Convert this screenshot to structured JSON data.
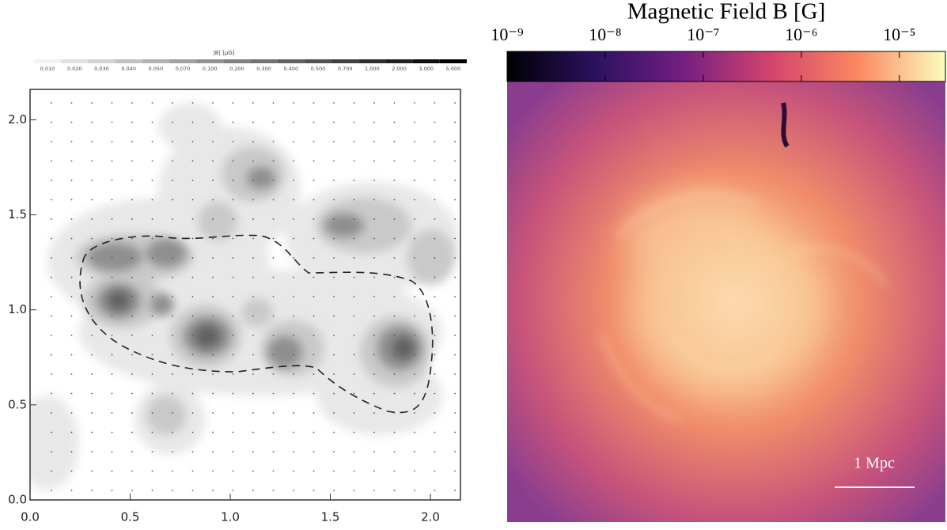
{
  "left_panel": {
    "colorbar": {
      "title": "|B| [μG]",
      "ticks": [
        {
          "value": 0.01,
          "label": "0.010"
        },
        {
          "value": 0.02,
          "label": "0.020"
        },
        {
          "value": 0.03,
          "label": "0.030"
        },
        {
          "value": 0.04,
          "label": "0.040"
        },
        {
          "value": 0.05,
          "label": "0.050"
        },
        {
          "value": 0.07,
          "label": "0.070"
        },
        {
          "value": 0.1,
          "label": "0.100"
        },
        {
          "value": 0.2,
          "label": "0.200"
        },
        {
          "value": 0.3,
          "label": "0.300"
        },
        {
          "value": 0.4,
          "label": "0.400"
        },
        {
          "value": 0.5,
          "label": "0.500"
        },
        {
          "value": 0.7,
          "label": "0.700"
        },
        {
          "value": 1,
          "label": "1.000"
        },
        {
          "value": 2,
          "label": "2.000"
        },
        {
          "value": 3,
          "label": "3.000"
        },
        {
          "value": 5,
          "label": "5.000"
        }
      ]
    },
    "xlim": [
      0,
      2.15
    ],
    "ylim": [
      0,
      2.16
    ],
    "xticks": [
      {
        "value": 0,
        "label": "0.0"
      },
      0.5,
      {
        "value": 1,
        "label": "1.0"
      },
      1.5,
      {
        "value": 2,
        "label": "2.0"
      }
    ],
    "yticks": [
      {
        "value": 0,
        "label": "0.0"
      },
      0.5,
      {
        "value": 1,
        "label": "1.0"
      },
      1.5,
      {
        "value": 2,
        "label": "2.0"
      }
    ]
  },
  "right_panel": {
    "title": "Magnetic Field  B [G]",
    "colorbar": {
      "log": true,
      "clim": [
        1e-09,
        2.95e-05
      ],
      "ticks": [
        {
          "value": 1e-09,
          "label": "10⁻⁹"
        },
        {
          "value": 1e-08,
          "label": "10⁻⁸"
        },
        {
          "value": 1e-07,
          "label": "10⁻⁷"
        },
        {
          "value": 1e-06,
          "label": "10⁻⁶"
        },
        {
          "value": 1e-05,
          "label": "10⁻⁵"
        }
      ]
    },
    "scale_bar": "1 Mpc"
  }
}
